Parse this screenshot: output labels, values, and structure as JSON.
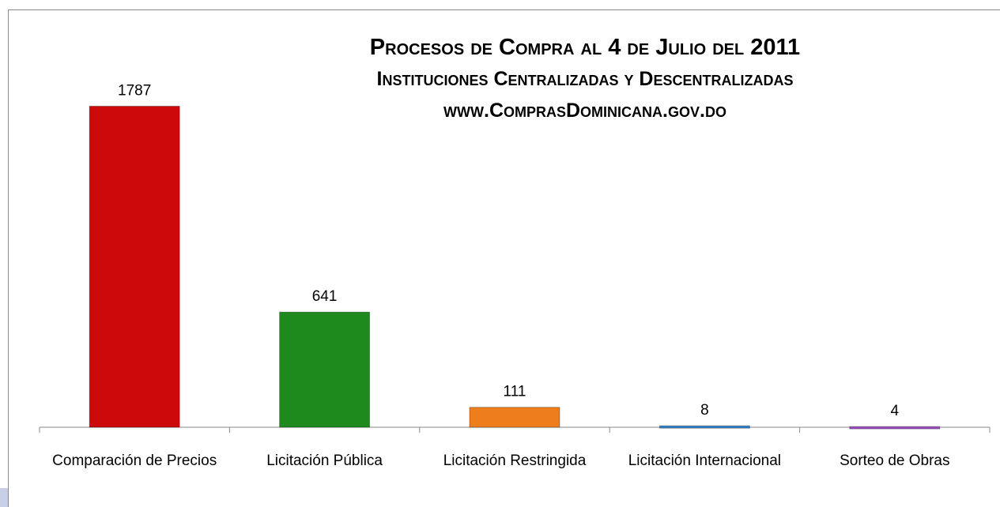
{
  "chart_data": {
    "type": "bar",
    "title": [
      "Procesos de Compra al 4 de Julio del 2011",
      "Instituciones Centralizadas y Descentralizadas",
      "www.ComprasDominicana.gov.do"
    ],
    "categories": [
      "Comparación de Precios",
      "Licitación Pública",
      "Licitación Restringida",
      "Licitación Internacional",
      "Sorteo de Obras"
    ],
    "values": [
      1787,
      641,
      111,
      8,
      4
    ],
    "colors": [
      "#cc0a0a",
      "#1e8a1e",
      "#ee7d1c",
      "#2f80c8",
      "#9a4fc2"
    ],
    "ylim": [
      0,
      2000
    ]
  }
}
